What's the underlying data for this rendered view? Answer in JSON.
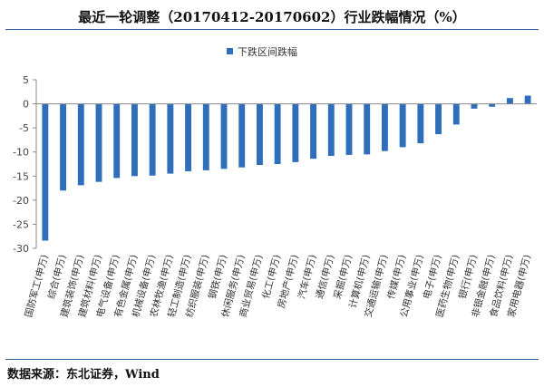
{
  "title": "最近一轮调整（20170412-20170602）行业跌幅情况（%）",
  "source": "数据来源：东北证券，Wind",
  "colors": {
    "bar": "#2f6eba",
    "rule": "#2e5d9a",
    "axis": "#888888"
  },
  "chart_data": {
    "type": "bar",
    "title": "最近一轮调整（20170412-20170602）行业跌幅情况（%）",
    "xlabel": "",
    "ylabel": "",
    "ylim": [
      -30,
      5
    ],
    "yticks": [
      "5",
      "0",
      "-5",
      "-10",
      "-15",
      "-20",
      "-25",
      "-30"
    ],
    "grid": false,
    "legend_position": "top-center",
    "categories": [
      "国防军工(申万)",
      "综合(申万)",
      "建筑装饰(申万)",
      "建筑材料(申万)",
      "电气设备(申万)",
      "有色金属(申万)",
      "机械设备(申万)",
      "农林牧渔(申万)",
      "轻工制造(申万)",
      "纺织服装(申万)",
      "钢铁(申万)",
      "休闲服务(申万)",
      "商业贸易(申万)",
      "化工(申万)",
      "房地产(申万)",
      "汽车(申万)",
      "通信(申万)",
      "采掘(申万)",
      "计算机(申万)",
      "交通运输(申万)",
      "传媒(申万)",
      "公用事业(申万)",
      "电子(申万)",
      "医药生物(申万)",
      "银行(申万)",
      "非银金融(申万)",
      "食品饮料(申万)",
      "家用电器(申万)"
    ],
    "series": [
      {
        "name": "下跌区间跌幅",
        "values": [
          -28.4,
          -18.0,
          -16.9,
          -16.2,
          -15.4,
          -15.0,
          -14.9,
          -14.5,
          -14.0,
          -13.8,
          -13.5,
          -13.2,
          -12.7,
          -12.5,
          -12.1,
          -11.4,
          -10.8,
          -10.6,
          -10.5,
          -9.8,
          -9.0,
          -8.2,
          -6.3,
          -4.3,
          -1.0,
          -0.6,
          1.2,
          1.7
        ]
      }
    ]
  }
}
